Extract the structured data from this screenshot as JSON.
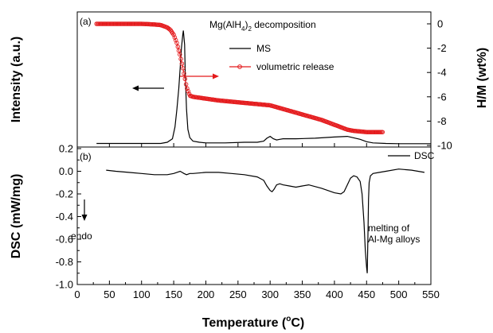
{
  "chart_data": [
    {
      "id": "a",
      "type": "line",
      "panel_label": "(a)",
      "title_main": "Mg(AlH",
      "title_sub": "4",
      "title_mid": ")",
      "title_sub2": "2",
      "title_tail": " decomposition",
      "ylabel_left": "Intensity (a.u.)",
      "ylabel_right": "H/M (wt%)",
      "xlim": [
        0,
        550
      ],
      "ylim_left": [
        0,
        1.0
      ],
      "ylim_right": [
        -10,
        0.5
      ],
      "right_ticks": [
        0,
        -2,
        -4,
        -6,
        -8,
        -10
      ],
      "legend": {
        "placement": "top-right",
        "ms": "MS",
        "vol": "volumetric release"
      },
      "colors": {
        "ms": "#000000",
        "vol": "#e41a1c"
      },
      "series": [
        {
          "key": "ms",
          "name": "MS",
          "axis": "left",
          "x": [
            30,
            60,
            100,
            130,
            140,
            148,
            152,
            155,
            158,
            160,
            162,
            164,
            165,
            167,
            168,
            170,
            172,
            175,
            180,
            190,
            200,
            230,
            260,
            280,
            290,
            295,
            300,
            305,
            310,
            315,
            320,
            340,
            370,
            400,
            420,
            440,
            450,
            460,
            480,
            500,
            550
          ],
          "values": [
            0.01,
            0.01,
            0.01,
            0.01,
            0.02,
            0.05,
            0.15,
            0.3,
            0.48,
            0.65,
            0.82,
            0.93,
            0.97,
            0.85,
            0.6,
            0.3,
            0.13,
            0.06,
            0.03,
            0.02,
            0.015,
            0.015,
            0.02,
            0.02,
            0.03,
            0.055,
            0.07,
            0.05,
            0.04,
            0.045,
            0.05,
            0.05,
            0.055,
            0.065,
            0.07,
            0.045,
            0.025,
            0.015,
            0.01,
            0.008,
            0.008
          ]
        },
        {
          "key": "vol",
          "name": "volumetric release",
          "axis": "right",
          "x": [
            30,
            50,
            80,
            100,
            120,
            130,
            140,
            145,
            150,
            155,
            160,
            165,
            170,
            175,
            180,
            200,
            220,
            240,
            260,
            280,
            300,
            320,
            340,
            360,
            380,
            400,
            410,
            420,
            430,
            440,
            450,
            460,
            470,
            475
          ],
          "values": [
            0,
            0,
            0,
            0,
            -0.05,
            -0.1,
            -0.3,
            -0.5,
            -0.9,
            -1.6,
            -2.6,
            -3.8,
            -5.2,
            -5.9,
            -6.0,
            -6.15,
            -6.3,
            -6.4,
            -6.5,
            -6.6,
            -6.7,
            -7.0,
            -7.3,
            -7.6,
            -7.9,
            -8.3,
            -8.5,
            -8.7,
            -8.8,
            -8.85,
            -8.9,
            -8.9,
            -8.9,
            -8.9
          ]
        }
      ]
    },
    {
      "id": "b",
      "type": "line",
      "panel_label": "(b)",
      "ylabel": "DSC (mW/mg)",
      "xlabel": "Temperature (",
      "xlabel_sup": "o",
      "xlabel_tail": "C)",
      "xlim": [
        0,
        550
      ],
      "x_ticks": [
        0,
        50,
        100,
        150,
        200,
        250,
        300,
        350,
        400,
        450,
        500,
        550
      ],
      "ylim": [
        -1.0,
        0.2
      ],
      "y_ticks": [
        0.2,
        0.0,
        -0.2,
        -0.4,
        -0.6,
        -0.8,
        -1.0
      ],
      "y_tick_labels": [
        "0.2",
        "0.0",
        "-0.2",
        "-0.4",
        "-0.6",
        "-0.8",
        "-1.0"
      ],
      "legend": {
        "placement": "top-right",
        "dsc": "DSC"
      },
      "annotations": {
        "endo": "endo",
        "melting_line1": "melting of",
        "melting_line2": "Al-Mg alloys"
      },
      "series": [
        {
          "key": "dsc",
          "name": "DSC",
          "x": [
            45,
            60,
            80,
            100,
            120,
            140,
            150,
            155,
            160,
            163,
            166,
            170,
            175,
            180,
            200,
            220,
            240,
            260,
            280,
            290,
            295,
            300,
            303,
            306,
            310,
            315,
            320,
            330,
            340,
            350,
            360,
            380,
            400,
            410,
            415,
            420,
            425,
            430,
            435,
            440,
            443,
            446,
            448,
            450,
            451,
            452,
            453,
            454,
            456,
            458,
            460,
            470,
            480,
            500,
            520,
            540
          ],
          "values": [
            0.01,
            0.0,
            -0.01,
            -0.02,
            -0.03,
            -0.03,
            -0.02,
            -0.01,
            0.0,
            -0.01,
            -0.02,
            -0.03,
            -0.02,
            -0.02,
            -0.01,
            -0.01,
            -0.02,
            -0.03,
            -0.05,
            -0.08,
            -0.13,
            -0.17,
            -0.18,
            -0.16,
            -0.12,
            -0.11,
            -0.12,
            -0.13,
            -0.14,
            -0.13,
            -0.12,
            -0.15,
            -0.19,
            -0.2,
            -0.18,
            -0.12,
            -0.06,
            -0.04,
            -0.05,
            -0.09,
            -0.2,
            -0.45,
            -0.7,
            -0.85,
            -0.9,
            -0.6,
            -0.25,
            -0.1,
            -0.04,
            -0.03,
            -0.02,
            -0.01,
            0.0,
            0.02,
            0.01,
            -0.01
          ]
        }
      ]
    }
  ]
}
